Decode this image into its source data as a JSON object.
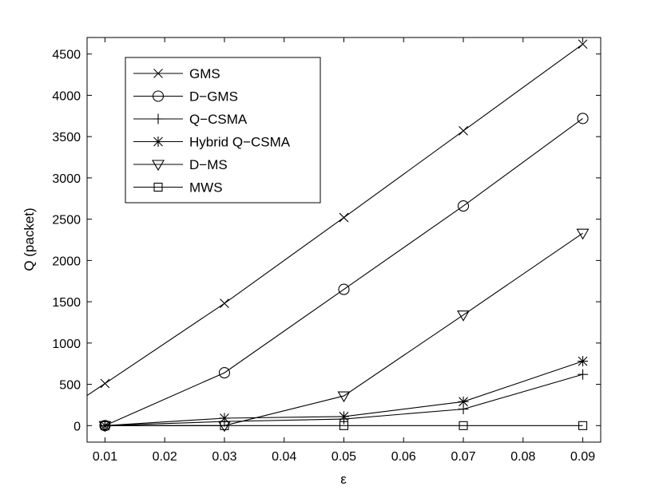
{
  "chart_data": {
    "type": "line",
    "title": "",
    "xlabel": "ε",
    "ylabel": "Q (packet)",
    "xlim": [
      0.007,
      0.093
    ],
    "ylim": [
      -200,
      4700
    ],
    "x_ticks": [
      0.01,
      0.02,
      0.03,
      0.04,
      0.05,
      0.06,
      0.07,
      0.08,
      0.09
    ],
    "x_tick_labels": [
      "0.01",
      "0.02",
      "0.03",
      "0.04",
      "0.05",
      "0.06",
      "0.07",
      "0.08",
      "0.09"
    ],
    "y_ticks": [
      0,
      500,
      1000,
      1500,
      2000,
      2500,
      3000,
      3500,
      4000,
      4500
    ],
    "y_tick_labels": [
      "0",
      "500",
      "1000",
      "1500",
      "2000",
      "2500",
      "3000",
      "3500",
      "4000",
      "4500"
    ],
    "grid": false,
    "legend_position": "top-left",
    "x": [
      0.01,
      0.03,
      0.05,
      0.07,
      0.09
    ],
    "series": [
      {
        "name": "GMS",
        "marker": "x",
        "values": [
          510,
          1480,
          2520,
          3570,
          4620
        ]
      },
      {
        "name": "D−GMS",
        "marker": "circle",
        "values": [
          0,
          640,
          1650,
          2660,
          3720
        ]
      },
      {
        "name": "Q−CSMA",
        "marker": "plus",
        "values": [
          0,
          50,
          80,
          200,
          620
        ]
      },
      {
        "name": "Hybrid Q−CSMA",
        "marker": "asterisk",
        "values": [
          0,
          90,
          110,
          290,
          780
        ]
      },
      {
        "name": "D−MS",
        "marker": "triangle-down",
        "values": [
          0,
          0,
          360,
          1340,
          2330
        ]
      },
      {
        "name": "MWS",
        "marker": "square",
        "values": [
          0,
          0,
          0,
          0,
          0
        ]
      }
    ],
    "extrapolated_segment": {
      "series": "GMS",
      "from_x": 0.007,
      "note": ""
    },
    "line_color": "#000000"
  }
}
